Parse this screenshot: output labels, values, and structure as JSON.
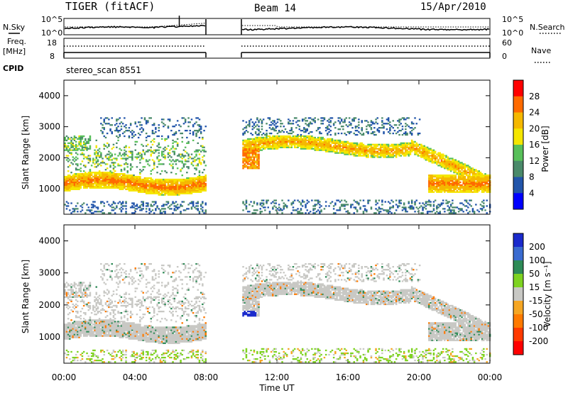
{
  "header": {
    "radar": "TIGER (fitACF)",
    "beam": "Beam 14",
    "date": "15/Apr/2010"
  },
  "top_panels": {
    "nsky_label": "N.Sky",
    "nsearch_label": "N.Search",
    "freq_label_line1": "Freq.",
    "freq_label_line2": "[MHz]",
    "nave_label": "Nave",
    "cpid_label": "CPID",
    "cpid_value": "stereo_scan 8551",
    "noise_ticks_left": [
      "10^5",
      "10^0"
    ],
    "noise_ticks_right": [
      "10^5",
      "10^0"
    ],
    "freq_ticks": [
      "18",
      "8"
    ],
    "nave_ticks": [
      "60",
      "0"
    ]
  },
  "chart_data": [
    {
      "type": "heatmap",
      "name": "power",
      "ylabel": "Slant Range [km]",
      "colorbar_label": "Power [dB]",
      "colorbar_ticks": [
        "28",
        "24",
        "20",
        "16",
        "12",
        "8",
        "4"
      ],
      "colorbar_colors": [
        "#ff0000",
        "#ff6a00",
        "#f5b800",
        "#f5e600",
        "#58c05a",
        "#4a8a6a",
        "#2255aa",
        "#0000ff"
      ],
      "x_ticks": [
        "00:00",
        "04:00",
        "08:00",
        "12:00",
        "16:00",
        "20:00",
        "00:00"
      ],
      "y_ticks": [
        "1000",
        "2000",
        "3000",
        "4000"
      ],
      "xlim_hours": [
        0,
        24
      ],
      "ylim_km": [
        180,
        4500
      ],
      "data_gap_hours": [
        8.0,
        10.0
      ]
    },
    {
      "type": "heatmap",
      "name": "velocity",
      "ylabel": "Slant Range [km]",
      "xlabel": "Time UT",
      "colorbar_label": "Velocity [m s⁻¹]",
      "colorbar_ticks": [
        "200",
        "100",
        "50",
        "15",
        "-15",
        "-50",
        "-100",
        "-200"
      ],
      "colorbar_colors": [
        "#1a2acc",
        "#3a6bd0",
        "#2e8b57",
        "#7ed321",
        "#c8c8c4",
        "#f5a623",
        "#ff7a00",
        "#ff3a00",
        "#ff0000"
      ],
      "x_ticks": [
        "00:00",
        "04:00",
        "08:00",
        "12:00",
        "16:00",
        "20:00",
        "00:00"
      ],
      "y_ticks": [
        "1000",
        "2000",
        "3000",
        "4000"
      ],
      "xlim_hours": [
        0,
        24
      ],
      "ylim_km": [
        180,
        4500
      ],
      "data_gap_hours": [
        8.0,
        10.0
      ]
    }
  ]
}
